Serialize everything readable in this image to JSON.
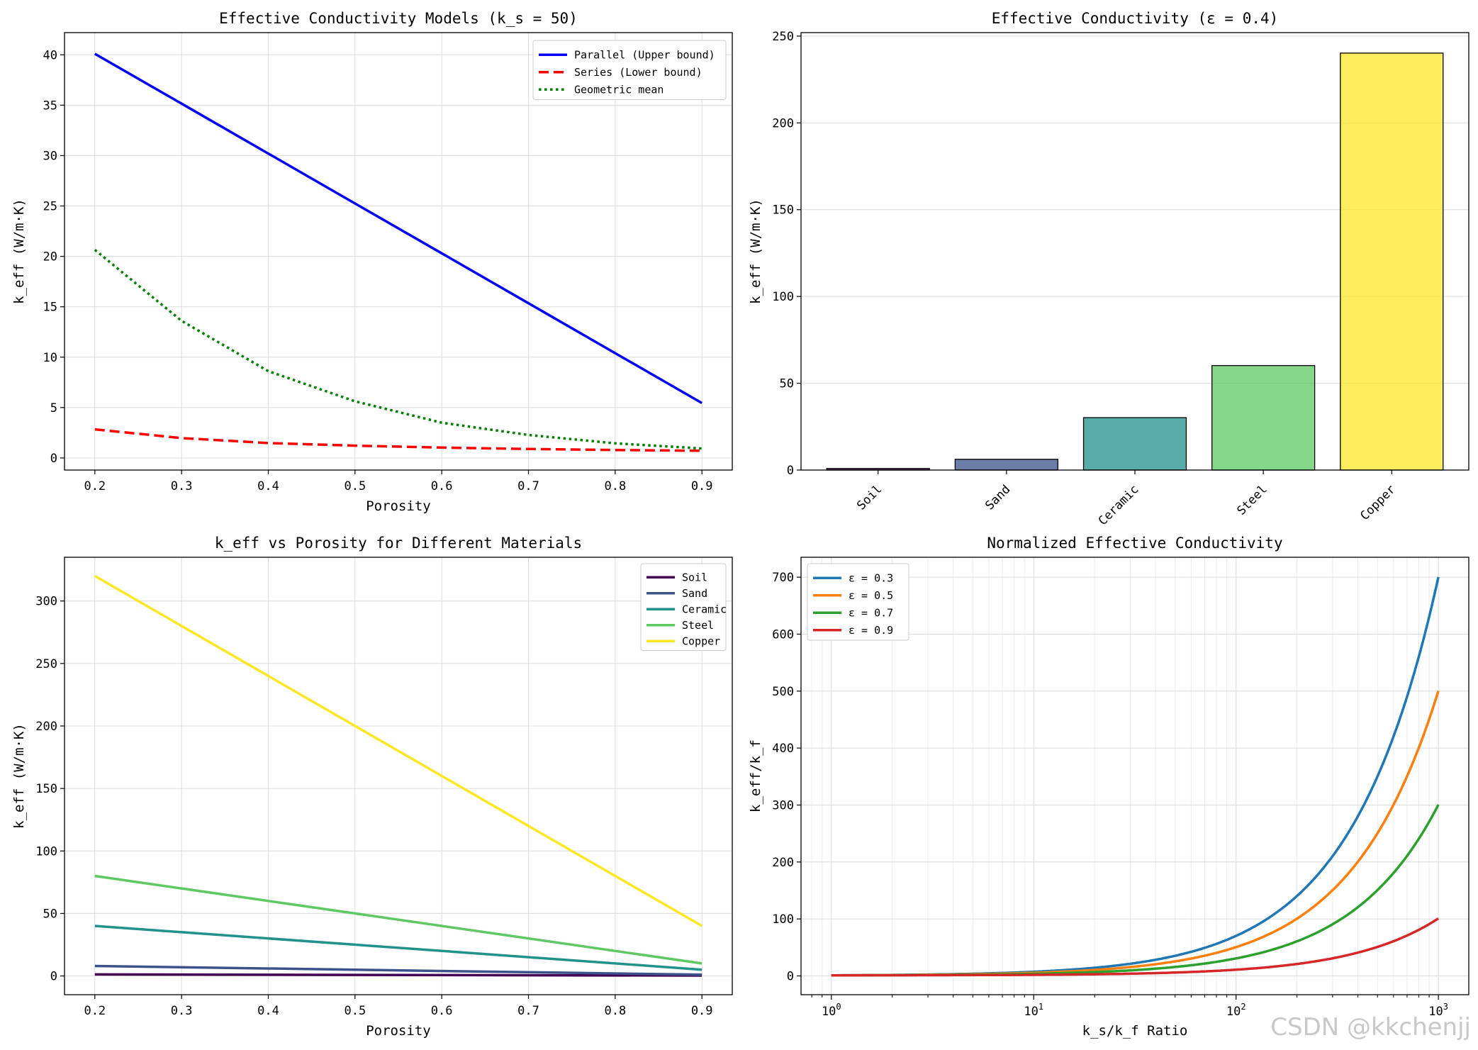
{
  "chart_data": [
    {
      "id": "models",
      "type": "line",
      "title": "Effective Conductivity Models (k_s = 50)",
      "xlabel": "Porosity",
      "ylabel": "k_eff (W/m·K)",
      "xlim": [
        0.165,
        0.935
      ],
      "ylim": [
        -1.2,
        42.2
      ],
      "xticks": [
        0.2,
        0.3,
        0.4,
        0.5,
        0.6,
        0.7,
        0.8,
        0.9
      ],
      "xtick_labels": [
        "0.2",
        "0.3",
        "0.4",
        "0.5",
        "0.6",
        "0.7",
        "0.8",
        "0.9"
      ],
      "yticks": [
        0,
        5,
        10,
        15,
        20,
        25,
        30,
        35,
        40
      ],
      "ytick_labels": [
        "0",
        "5",
        "10",
        "15",
        "20",
        "25",
        "30",
        "35",
        "40"
      ],
      "grid": true,
      "legend_position": "top-right",
      "x": [
        0.2,
        0.3,
        0.4,
        0.5,
        0.6,
        0.7,
        0.8,
        0.9
      ],
      "series": [
        {
          "name": "Parallel (Upper bound)",
          "color": "#0000ff",
          "dash": "solid",
          "values": [
            40.1,
            35.15,
            30.2,
            25.25,
            20.3,
            15.35,
            10.4,
            5.45
          ]
        },
        {
          "name": "Series (Lower bound)",
          "color": "#ff0000",
          "dash": "dashed",
          "values": [
            2.84,
            1.97,
            1.48,
            1.22,
            1.03,
            0.89,
            0.79,
            0.71
          ]
        },
        {
          "name": "Geometric mean",
          "color": "#008000",
          "dash": "dotted",
          "values": [
            20.65,
            13.6,
            8.61,
            5.62,
            3.5,
            2.28,
            1.45,
            0.94
          ]
        }
      ]
    },
    {
      "id": "bars",
      "type": "bar",
      "title": "Effective Conductivity (ε = 0.4)",
      "xlabel": "",
      "ylabel": "k_eff (W/m·K)",
      "ylim": [
        0,
        252
      ],
      "yticks": [
        0,
        50,
        100,
        150,
        200,
        250
      ],
      "ytick_labels": [
        "0",
        "50",
        "100",
        "150",
        "200",
        "250"
      ],
      "grid": true,
      "categories": [
        "Soil",
        "Sand",
        "Ceramic",
        "Steel",
        "Copper"
      ],
      "values": [
        0.9,
        6.2,
        30.2,
        60.2,
        240.2
      ],
      "colors": [
        "#440154",
        "#3b528b",
        "#21918c",
        "#5ec962",
        "#fde725"
      ]
    },
    {
      "id": "materials",
      "type": "line",
      "title": "k_eff vs Porosity for Different Materials",
      "xlabel": "Porosity",
      "ylabel": "k_eff (W/m·K)",
      "xlim": [
        0.165,
        0.935
      ],
      "ylim": [
        -15,
        335
      ],
      "xticks": [
        0.2,
        0.3,
        0.4,
        0.5,
        0.6,
        0.7,
        0.8,
        0.9
      ],
      "xtick_labels": [
        "0.2",
        "0.3",
        "0.4",
        "0.5",
        "0.6",
        "0.7",
        "0.8",
        "0.9"
      ],
      "yticks": [
        0,
        50,
        100,
        150,
        200,
        250,
        300
      ],
      "ytick_labels": [
        "0",
        "50",
        "100",
        "150",
        "200",
        "250",
        "300"
      ],
      "grid": true,
      "legend_position": "top-right",
      "x": [
        0.2,
        0.9
      ],
      "series": [
        {
          "name": "Soil",
          "color": "#440154",
          "values": [
            1.2,
            0.3
          ]
        },
        {
          "name": "Sand",
          "color": "#3b528b",
          "values": [
            8.0,
            1.0
          ]
        },
        {
          "name": "Ceramic",
          "color": "#21918c",
          "values": [
            40.0,
            5.0
          ]
        },
        {
          "name": "Steel",
          "color": "#5ec962",
          "values": [
            80.0,
            10.0
          ]
        },
        {
          "name": "Copper",
          "color": "#fde725",
          "values": [
            320.0,
            40.0
          ]
        }
      ]
    },
    {
      "id": "normalized",
      "type": "line",
      "title": "Normalized Effective Conductivity",
      "xlabel": "k_s/k_f Ratio",
      "ylabel": "k_eff/k_f",
      "xscale": "log",
      "xlim": [
        0.708,
        1413
      ],
      "ylim": [
        -33,
        735
      ],
      "xticks": [
        1,
        10,
        100,
        1000
      ],
      "xtick_base": "10",
      "xtick_exponents": [
        "0",
        "1",
        "2",
        "3"
      ],
      "yticks": [
        0,
        100,
        200,
        300,
        400,
        500,
        600,
        700
      ],
      "ytick_labels": [
        "0",
        "100",
        "200",
        "300",
        "400",
        "500",
        "600",
        "700"
      ],
      "grid": true,
      "legend_position": "top-left",
      "series": [
        {
          "name": "ε = 0.3",
          "color": "#1f77b4",
          "porosity": 0.3
        },
        {
          "name": "ε = 0.5",
          "color": "#ff7f0e",
          "porosity": 0.5
        },
        {
          "name": "ε = 0.7",
          "color": "#2ca02c",
          "porosity": 0.7
        },
        {
          "name": "ε = 0.9",
          "color": "#d62728",
          "porosity": 0.9
        }
      ]
    }
  ],
  "watermark": "CSDN @kkchenjj"
}
